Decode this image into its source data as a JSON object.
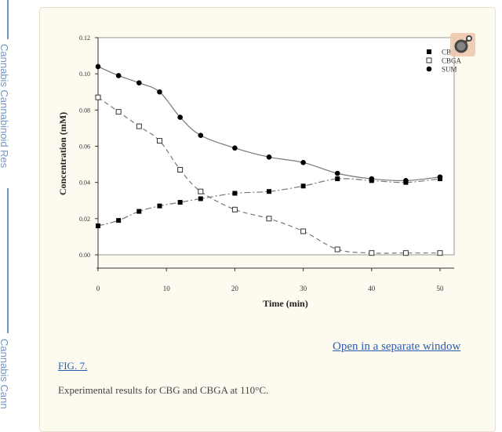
{
  "sidebar": {
    "label1": "Cannabis Cannabinoid Res",
    "label2": "Cannabis Cann"
  },
  "figure": {
    "link": "Open in a separate window",
    "fig_label": "FIG. 7.",
    "caption": "Experimental results for CBG and CBGA at 110°C."
  },
  "chart_data": {
    "type": "scatter",
    "title": "",
    "xlabel": "Time (min)",
    "ylabel": "Concentration (mM)",
    "xlim": [
      0,
      52
    ],
    "ylim": [
      0,
      0.12
    ],
    "xticks": [
      0,
      10,
      20,
      30,
      40,
      50
    ],
    "yticks": [
      "0.00",
      "0.02",
      "0.04",
      "0.06",
      "0.08",
      "0.10",
      "0.12"
    ],
    "legend_position": "top-right",
    "series": [
      {
        "name": "CBG",
        "marker": "filled-square",
        "line": "dash-dot",
        "x": [
          0,
          3,
          6,
          9,
          12,
          15,
          20,
          25,
          30,
          35,
          40,
          45,
          50
        ],
        "y": [
          0.016,
          0.019,
          0.024,
          0.027,
          0.029,
          0.031,
          0.034,
          0.035,
          0.038,
          0.042,
          0.041,
          0.04,
          0.042
        ]
      },
      {
        "name": "CBGA",
        "marker": "open-square",
        "line": "dashed",
        "x": [
          0,
          3,
          6,
          9,
          12,
          15,
          20,
          25,
          30,
          35,
          40,
          45,
          50
        ],
        "y": [
          0.087,
          0.079,
          0.071,
          0.063,
          0.047,
          0.035,
          0.025,
          0.02,
          0.013,
          0.003,
          0.001,
          0.001,
          0.001
        ]
      },
      {
        "name": "SUM",
        "marker": "filled-circle",
        "line": "solid",
        "x": [
          0,
          3,
          6,
          9,
          12,
          15,
          20,
          25,
          30,
          35,
          40,
          45,
          50
        ],
        "y": [
          0.104,
          0.099,
          0.095,
          0.09,
          0.076,
          0.066,
          0.059,
          0.054,
          0.051,
          0.045,
          0.042,
          0.041,
          0.043
        ]
      }
    ]
  }
}
